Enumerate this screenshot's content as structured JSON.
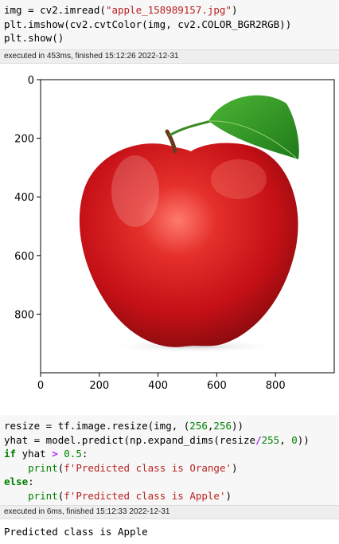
{
  "cell1": {
    "lines": [
      "img = cv2.imread(\"apple_158989157.jpg\")",
      "plt.imshow(cv2.cvtColor(img, cv2.COLOR_BGR2RGB))",
      "plt.show()"
    ],
    "exec_status": "executed in 453ms, finished 15:12:26 2022-12-31"
  },
  "plot": {
    "type": "image",
    "image_subject": "red apple with green leaf",
    "x_ticks": [
      "0",
      "200",
      "400",
      "600",
      "800"
    ],
    "y_ticks": [
      "0",
      "200",
      "400",
      "600",
      "800"
    ],
    "x_tick_values": [
      0,
      200,
      400,
      600,
      800
    ],
    "y_tick_values": [
      0,
      200,
      400,
      600,
      800
    ],
    "xlim": [
      0,
      1000
    ],
    "ylim": [
      0,
      1000
    ]
  },
  "cell2": {
    "lines": [
      "resize = tf.image.resize(img, (256,256))",
      "yhat = model.predict(np.expand_dims(resize/255, 0))",
      "if yhat > 0.5:",
      "    print(f'Predicted class is Orange')",
      "else:",
      "    print(f'Predicted class is Apple')"
    ],
    "exec_status": "executed in 6ms, finished 15:12:33 2022-12-31",
    "output": "Predicted class is Apple"
  }
}
